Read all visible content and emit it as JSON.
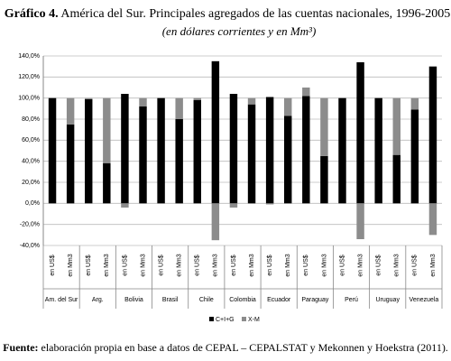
{
  "chart_data": {
    "type": "stacked-bar",
    "title_prefix": "Gráfico 4.",
    "title": "América del Sur. Principales agregados de las cuentas nacionales, 1996-2005",
    "subtitle": "(en dólares corrientes y en Mm³)",
    "categories": [
      "en US$",
      "en Mm3",
      "en US$",
      "en Mm3",
      "en US$",
      "en Mm3",
      "en US$",
      "en Mm3",
      "en US$",
      "en Mm3",
      "en US$",
      "en Mm3",
      "en US$",
      "en Mm3",
      "en US$",
      "en Mm3",
      "en US$",
      "en Mm3",
      "en US$",
      "en Mm3",
      "en US$",
      "en Mm3"
    ],
    "groups": [
      "Am. del Sur",
      "Arg.",
      "Bolivia",
      "Brasil",
      "Chile",
      "Colombia",
      "Ecuador",
      "Paraguay",
      "Perú",
      "Uruguay",
      "Venezuela"
    ],
    "series": [
      {
        "name": "C+I+G",
        "color": "#000000",
        "values": [
          100,
          75,
          99,
          38,
          104,
          92,
          100,
          80,
          98,
          135,
          104,
          94,
          101,
          83,
          102,
          45,
          100,
          134,
          100,
          46,
          89,
          130
        ]
      },
      {
        "name": "X-M",
        "color": "#8c8c8c",
        "values": [
          0,
          25,
          1,
          62,
          -4,
          8,
          0,
          20,
          2,
          -35,
          -4,
          6,
          -1,
          17,
          8,
          55,
          0,
          -34,
          0,
          54,
          11,
          -30
        ]
      }
    ],
    "ylim": [
      -40,
      140
    ],
    "yticks": [
      {
        "value": -40,
        "label": "-40,0%"
      },
      {
        "value": -20,
        "label": "-20,0%"
      },
      {
        "value": 0,
        "label": "0,0%"
      },
      {
        "value": 20,
        "label": "20,0%"
      },
      {
        "value": 40,
        "label": "40,0%"
      },
      {
        "value": 60,
        "label": "60,0%"
      },
      {
        "value": 80,
        "label": "80,0%"
      },
      {
        "value": 100,
        "label": "100,0%"
      },
      {
        "value": 120,
        "label": "120,0%"
      },
      {
        "value": 140,
        "label": "140,0%"
      }
    ],
    "grid": true,
    "legend": "bottom",
    "source_label": "Fuente:",
    "source": "elaboración propia en base a datos de CEPAL – CEPALSTAT y Mekonnen y Hoekstra (2011)."
  }
}
